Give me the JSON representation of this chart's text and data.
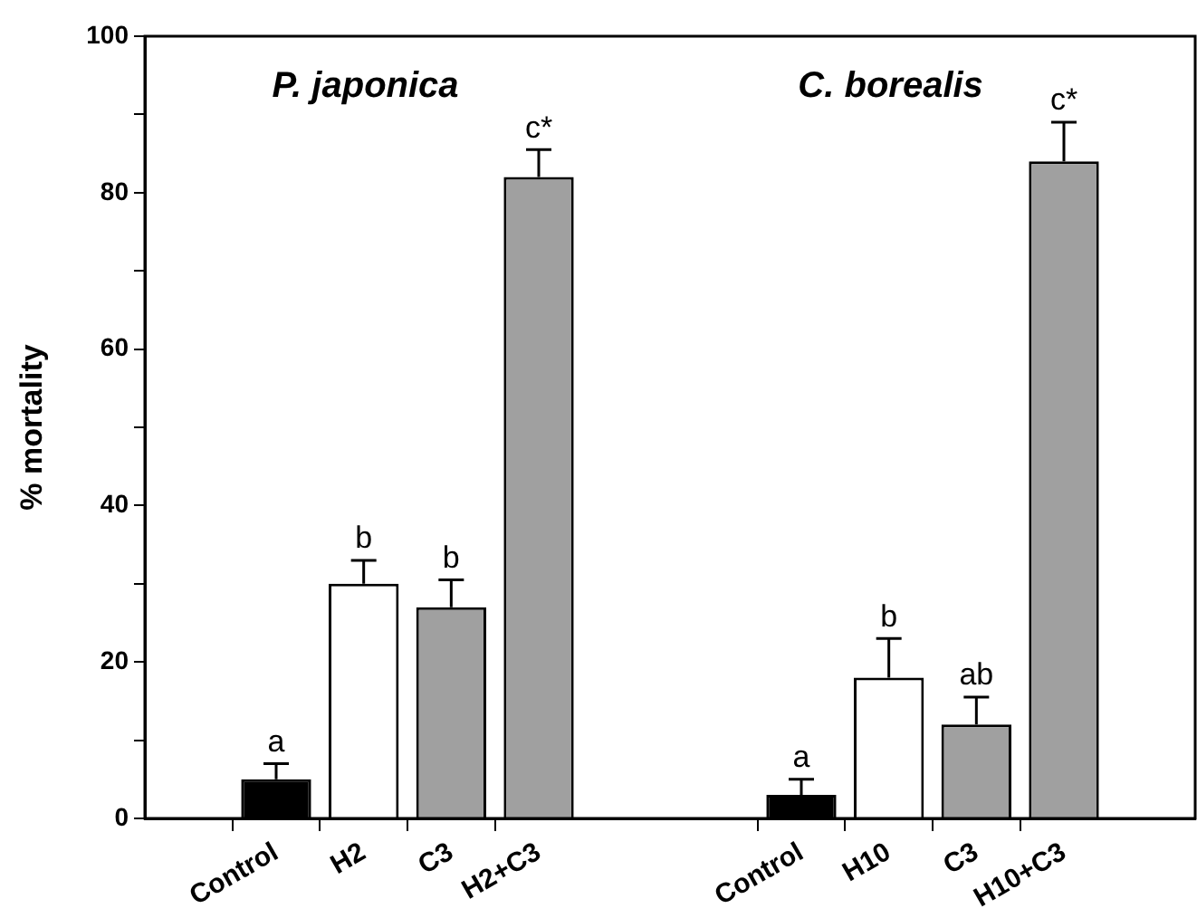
{
  "chart_data": {
    "type": "bar",
    "ylabel": "% mortality",
    "categories": [
      null,
      "Control",
      "H2",
      "C3",
      "H2+C3",
      null,
      null,
      "Control",
      "H10",
      "C3",
      "H10+C3",
      null
    ],
    "values": [
      null,
      5,
      30,
      27,
      82,
      null,
      null,
      3,
      18,
      12,
      84,
      null
    ],
    "errors": [
      null,
      2,
      3,
      3.5,
      3.5,
      null,
      null,
      2,
      5,
      3.5,
      5,
      null
    ],
    "colors": [
      "#000000",
      "#000000",
      "#ffffff",
      "#a0a0a0",
      "#a0a0a0",
      "#000000",
      "#000000",
      "#000000",
      "#ffffff",
      "#a0a0a0",
      "#a0a0a0",
      "#000000"
    ],
    "value_labels": [
      null,
      "a",
      "b",
      "b",
      "c*",
      null,
      null,
      "a",
      "b",
      "ab",
      "c*",
      null
    ],
    "annotations": [
      "P. japonica",
      "C. borealis"
    ],
    "ylim": [
      0,
      100
    ],
    "yticks": [
      0,
      {
        "value": 10,
        "label": null
      },
      20,
      {
        "value": 30,
        "label": null
      },
      40,
      {
        "value": 50,
        "label": null
      },
      60,
      {
        "value": 70,
        "label": null
      },
      80,
      {
        "value": 90,
        "label": null
      },
      100
    ],
    "grid": false,
    "legend": false
  }
}
